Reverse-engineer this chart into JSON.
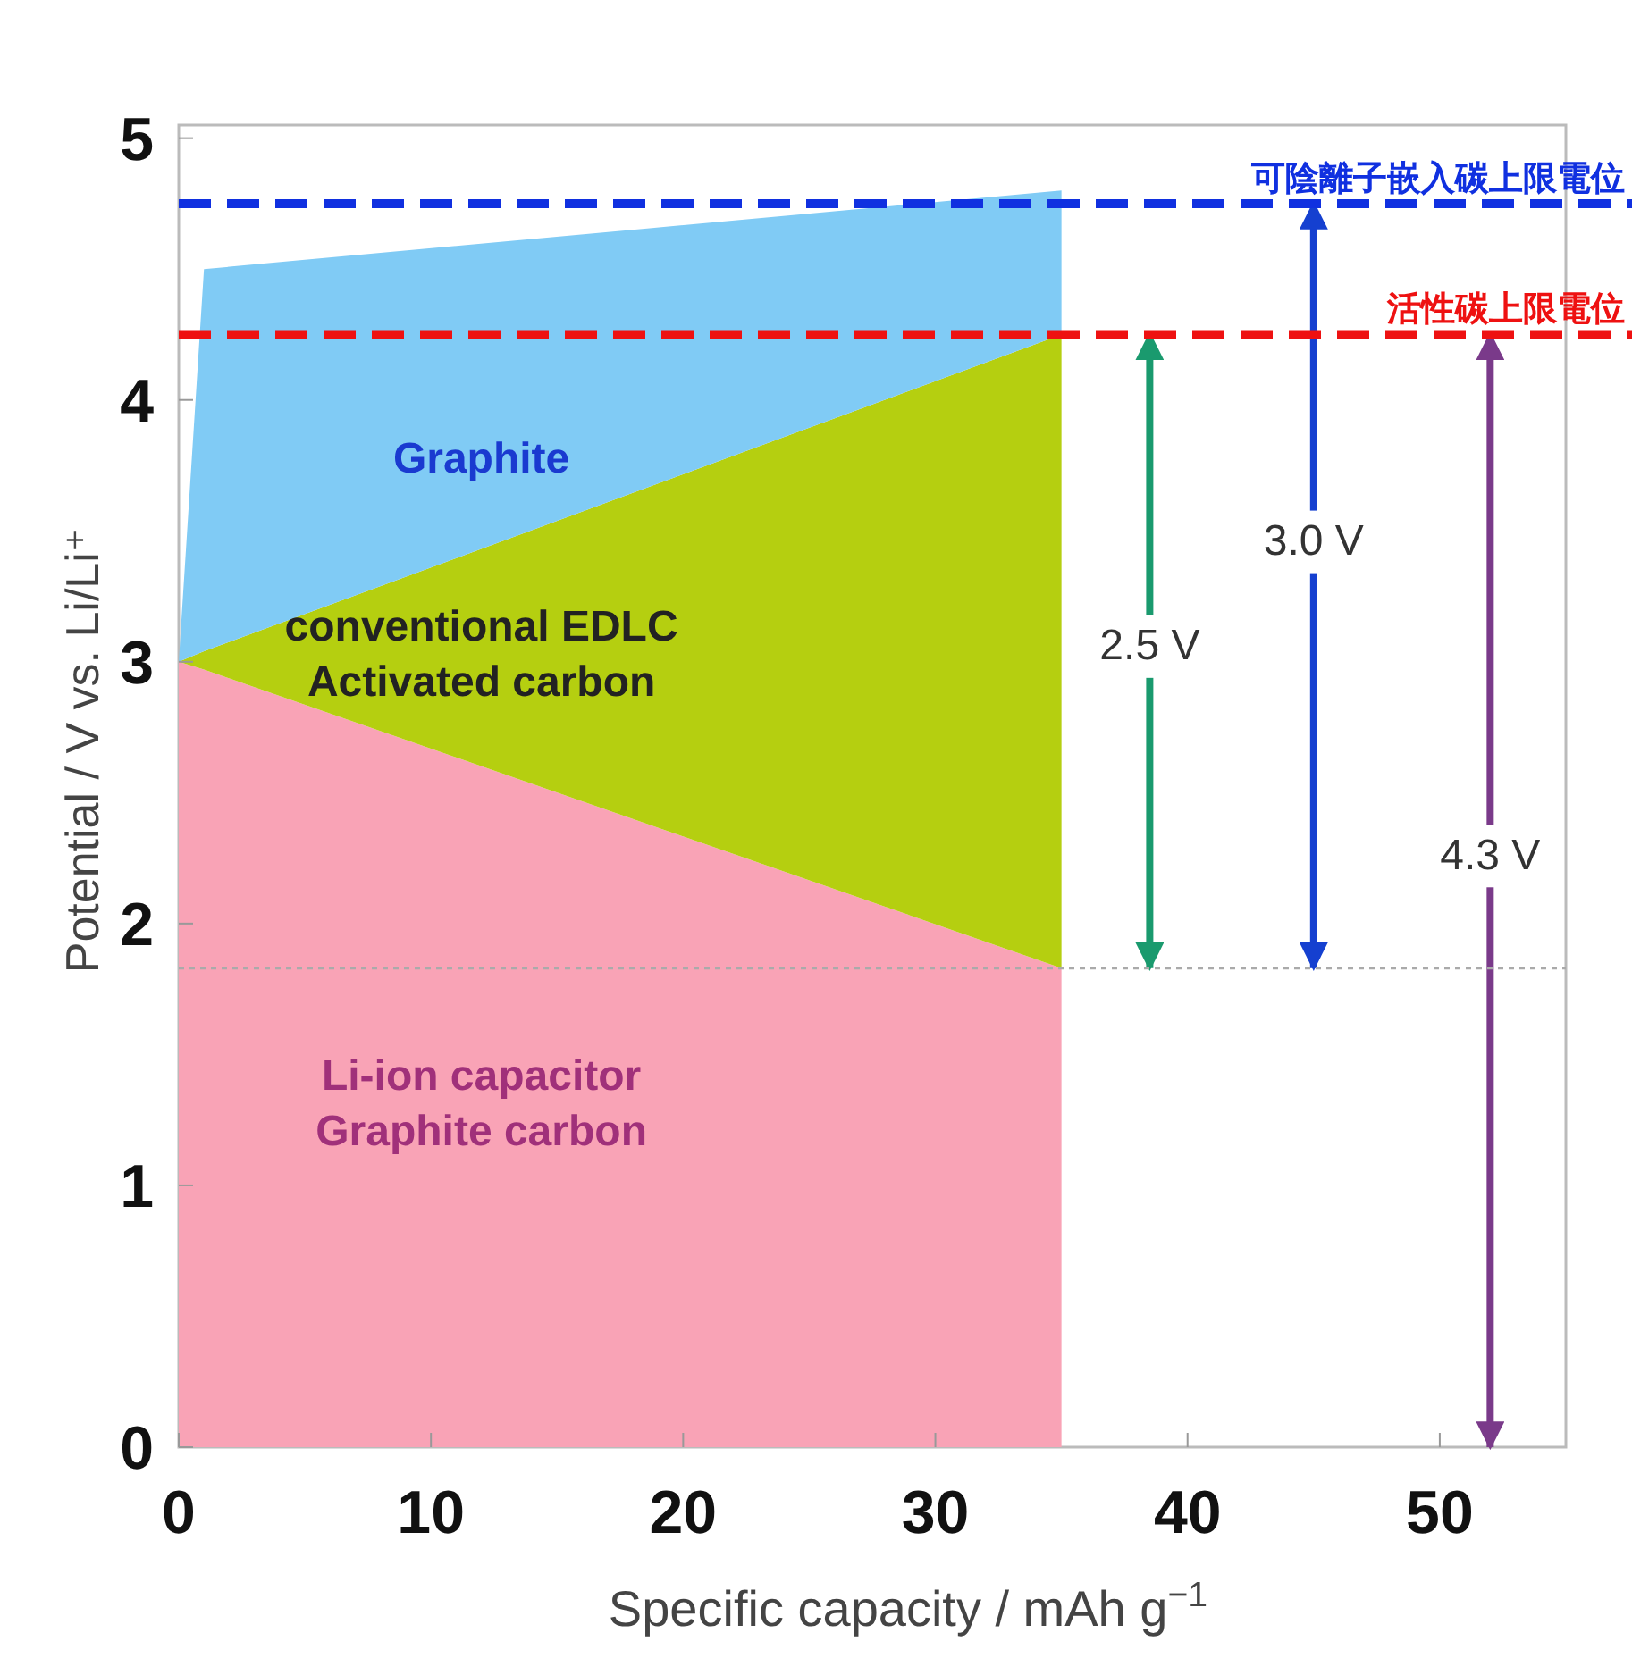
{
  "chart_data": {
    "type": "area",
    "stacked": true,
    "xlabel": "Specific capacity / mAh g$^{−1}$",
    "ylabel": "Potential / V vs. Li/Li⁺",
    "xlim": [
      0,
      55
    ],
    "ylim": [
      0,
      5.05
    ],
    "xticks": [
      0,
      10,
      20,
      30,
      40,
      50
    ],
    "yticks": [
      0,
      1,
      2,
      3,
      4,
      5
    ],
    "grid": false,
    "series": [
      {
        "name": "Li-ion capacitor\nGraphite carbon",
        "color": "#f9a3b6",
        "x": [
          0,
          1,
          35
        ],
        "values": [
          3,
          2.97,
          1.83
        ]
      },
      {
        "name": "conventional EDLC\nActivated carbon",
        "color": "#b5cf10",
        "x": [
          0,
          1,
          35
        ],
        "values": [
          0,
          0.07,
          2.42
        ]
      },
      {
        "name": "Graphite",
        "color": "#80cbf5",
        "x": [
          0,
          1,
          35
        ],
        "values": [
          0,
          1.46,
          0.55
        ]
      },
      {
        "type": "line",
        "color": "#1a9a6e",
        "x": [
          38.5,
          38.5
        ],
        "values": [
          1.83,
          4.25
        ]
      },
      {
        "type": "line",
        "color": "#1540d0",
        "x": [
          45,
          45
        ],
        "values": [
          1.83,
          4.75
        ]
      },
      {
        "type": "line",
        "color": "#7a3a8a",
        "x": [
          52,
          52
        ],
        "values": [
          0,
          4.25
        ]
      }
    ],
    "ref_lines": [
      {
        "axis": "y",
        "value": 4.75,
        "label": "可陰離子嵌入碳上限電位",
        "color": "#1030e0",
        "line_style": "dashed"
      },
      {
        "axis": "y",
        "value": 4.25,
        "label": "活性碳上限電位",
        "color": "#ee1111",
        "line_style": "dashed"
      },
      {
        "axis": "y",
        "value": 1.83,
        "color": "#aaaaaa",
        "line_style": "dotted"
      }
    ],
    "annotations": [
      {
        "text": "2.5 V",
        "x": 38.5,
        "y": 3.05
      },
      {
        "text": "3.0 V",
        "x": 45,
        "y": 3.45
      },
      {
        "text": "4.3 V",
        "x": 52,
        "y": 2.25
      }
    ]
  }
}
